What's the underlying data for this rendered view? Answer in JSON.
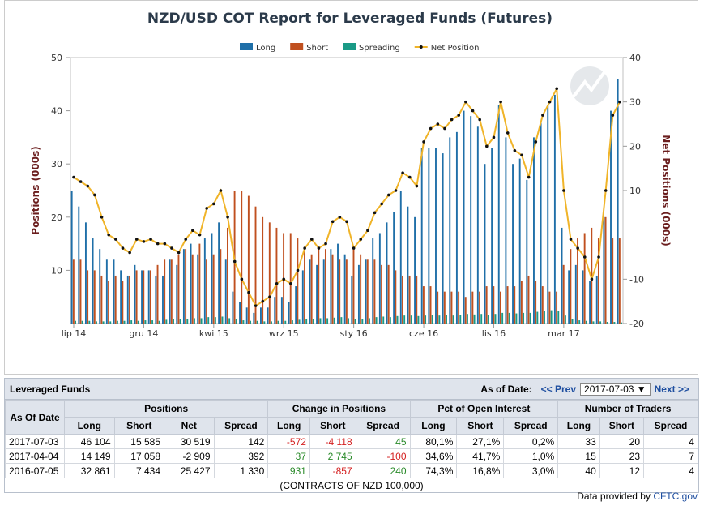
{
  "chart_data": {
    "type": "bar_line",
    "title": "NZD/USD COT Report for Leveraged Funds (Futures)",
    "ylabel": "Positions (000s)",
    "y2label": "Net Positions (000s)",
    "categories": [
      "lip 14",
      null,
      null,
      null,
      null,
      null,
      null,
      null,
      null,
      null,
      "gru 14",
      null,
      null,
      null,
      null,
      null,
      null,
      null,
      null,
      null,
      "kwi 15",
      null,
      null,
      null,
      null,
      null,
      null,
      null,
      null,
      null,
      "wrz 15",
      null,
      null,
      null,
      null,
      null,
      null,
      null,
      null,
      null,
      "sty 16",
      null,
      null,
      null,
      null,
      null,
      null,
      null,
      null,
      null,
      "cze 16",
      null,
      null,
      null,
      null,
      null,
      null,
      null,
      null,
      null,
      "lis 16",
      null,
      null,
      null,
      null,
      null,
      null,
      null,
      null,
      null,
      "mar 17",
      null,
      null,
      null,
      null,
      null,
      null,
      null,
      null
    ],
    "ylim": [
      0,
      50
    ],
    "yticks": [
      10,
      20,
      30,
      40,
      50
    ],
    "y2lim": [
      -20,
      40
    ],
    "y2ticks": [
      -20,
      -10,
      10,
      20,
      30,
      40
    ],
    "series": [
      {
        "name": "Long",
        "type": "bar",
        "color": "#1f6fa8",
        "values": [
          25,
          22,
          19,
          16,
          14,
          12,
          12,
          10,
          9,
          11,
          10,
          10,
          9,
          9,
          12,
          11,
          14,
          15,
          13,
          16,
          17,
          19,
          12,
          6,
          4,
          3,
          2,
          3,
          3,
          5,
          5,
          4,
          7,
          10,
          12,
          11,
          12,
          14,
          15,
          13,
          9,
          11,
          12,
          16,
          17,
          19,
          21,
          25,
          22,
          20,
          33,
          33,
          33,
          32,
          35,
          36,
          40,
          39,
          37,
          30,
          33,
          41,
          35,
          30,
          31,
          27,
          35,
          38,
          41,
          43,
          18,
          10,
          11,
          10,
          8,
          9,
          20,
          40,
          46
        ]
      },
      {
        "name": "Short",
        "type": "bar",
        "color": "#c0501f",
        "values": [
          12,
          12,
          10,
          10,
          9,
          8,
          9,
          8,
          9,
          10,
          10,
          10,
          11,
          12,
          12,
          13,
          14,
          13,
          15,
          12,
          13,
          14,
          18,
          25,
          25,
          24,
          22,
          20,
          19,
          18,
          17,
          17,
          16,
          14,
          13,
          14,
          14,
          13,
          12,
          12,
          14,
          13,
          12,
          12,
          11,
          11,
          10,
          9,
          9,
          9,
          7,
          7,
          6,
          6,
          6,
          6,
          5,
          6,
          6,
          7,
          7,
          6,
          7,
          7,
          8,
          9,
          8,
          7,
          6,
          6,
          11,
          14,
          16,
          17,
          18,
          16,
          20,
          16,
          16
        ]
      },
      {
        "name": "Spreading",
        "type": "bar",
        "color": "#1a9a86",
        "values": [
          0.5,
          0.5,
          0.5,
          0.4,
          0.4,
          0.4,
          0.5,
          0.5,
          0.6,
          0.5,
          0.6,
          0.6,
          0.5,
          0.7,
          0.8,
          0.8,
          0.9,
          1,
          1,
          1.2,
          1.2,
          1.3,
          1,
          0.8,
          0.6,
          0.5,
          0.5,
          0.4,
          0.4,
          0.5,
          0.5,
          0.6,
          0.7,
          0.8,
          0.8,
          1,
          1,
          1.1,
          1.2,
          1,
          0.8,
          0.9,
          1,
          1.2,
          1.3,
          1.2,
          1.4,
          1.5,
          1.5,
          1.4,
          1.5,
          1.6,
          1.5,
          1.6,
          1.5,
          1.6,
          1.8,
          1.7,
          1.8,
          1.6,
          1.8,
          2,
          2,
          1.9,
          2,
          2,
          2.2,
          2.3,
          2.5,
          2.4,
          1.5,
          0.8,
          0.6,
          0.5,
          0.4,
          0.4,
          0.3,
          0.3,
          0.2
        ]
      },
      {
        "name": "Net Position",
        "type": "line",
        "axis": "y2",
        "color": "#f0b429",
        "marker_color": "#111111",
        "values": [
          13,
          12,
          11,
          9,
          4,
          0,
          -1,
          -3,
          -4,
          -1,
          -1.5,
          -1,
          -2,
          -2,
          -3,
          -4,
          -1,
          1,
          0,
          6,
          7,
          10,
          4,
          -6,
          -10,
          -13,
          -16,
          -15,
          -14,
          -11,
          -10,
          -11,
          -8,
          -3,
          -1,
          -3,
          -2,
          3,
          4,
          3,
          -3,
          -1,
          1,
          5,
          7,
          9,
          10,
          14,
          13,
          11,
          21,
          24,
          25,
          24,
          26,
          27,
          30,
          28,
          26,
          20,
          22,
          30,
          23,
          19,
          18,
          13,
          21,
          27,
          30,
          33,
          10,
          -1,
          -3,
          -5,
          -10,
          -5,
          10,
          27,
          30
        ]
      }
    ]
  },
  "table": {
    "title": "Leveraged Funds",
    "as_of_label": "As of Date:",
    "prev": "<< Prev",
    "date": "2017-07-03",
    "next": "Next >>",
    "first_column": "As Of Date",
    "groups": [
      {
        "name": "Positions",
        "columns": [
          "Long",
          "Short",
          "Net",
          "Spread"
        ]
      },
      {
        "name": "Change in Positions",
        "columns": [
          "Long",
          "Short",
          "Spread"
        ]
      },
      {
        "name": "Pct of Open Interest",
        "columns": [
          "Long",
          "Short",
          "Spread"
        ]
      },
      {
        "name": "Number of Traders",
        "columns": [
          "Long",
          "Short",
          "Spread"
        ]
      }
    ],
    "rows": [
      [
        "2017-07-03",
        "46 104",
        "15 585",
        "30 519",
        "142",
        "-572",
        "-4 118",
        "45",
        "80,1%",
        "27,1%",
        "0,2%",
        "33",
        "20",
        "4"
      ],
      [
        "2017-04-04",
        "14 149",
        "17 058",
        "-2 909",
        "392",
        "37",
        "2 745",
        "-100",
        "34,6%",
        "41,7%",
        "1,0%",
        "15",
        "23",
        "7"
      ],
      [
        "2016-07-05",
        "32 861",
        "7 434",
        "25 427",
        "1 330",
        "931",
        "-857",
        "240",
        "74,3%",
        "16,8%",
        "3,0%",
        "40",
        "12",
        "4"
      ]
    ],
    "footnote": "(CONTRACTS OF NZD 100,000)"
  },
  "credit": {
    "text": "Data provided by",
    "link": "CFTC.gov"
  }
}
